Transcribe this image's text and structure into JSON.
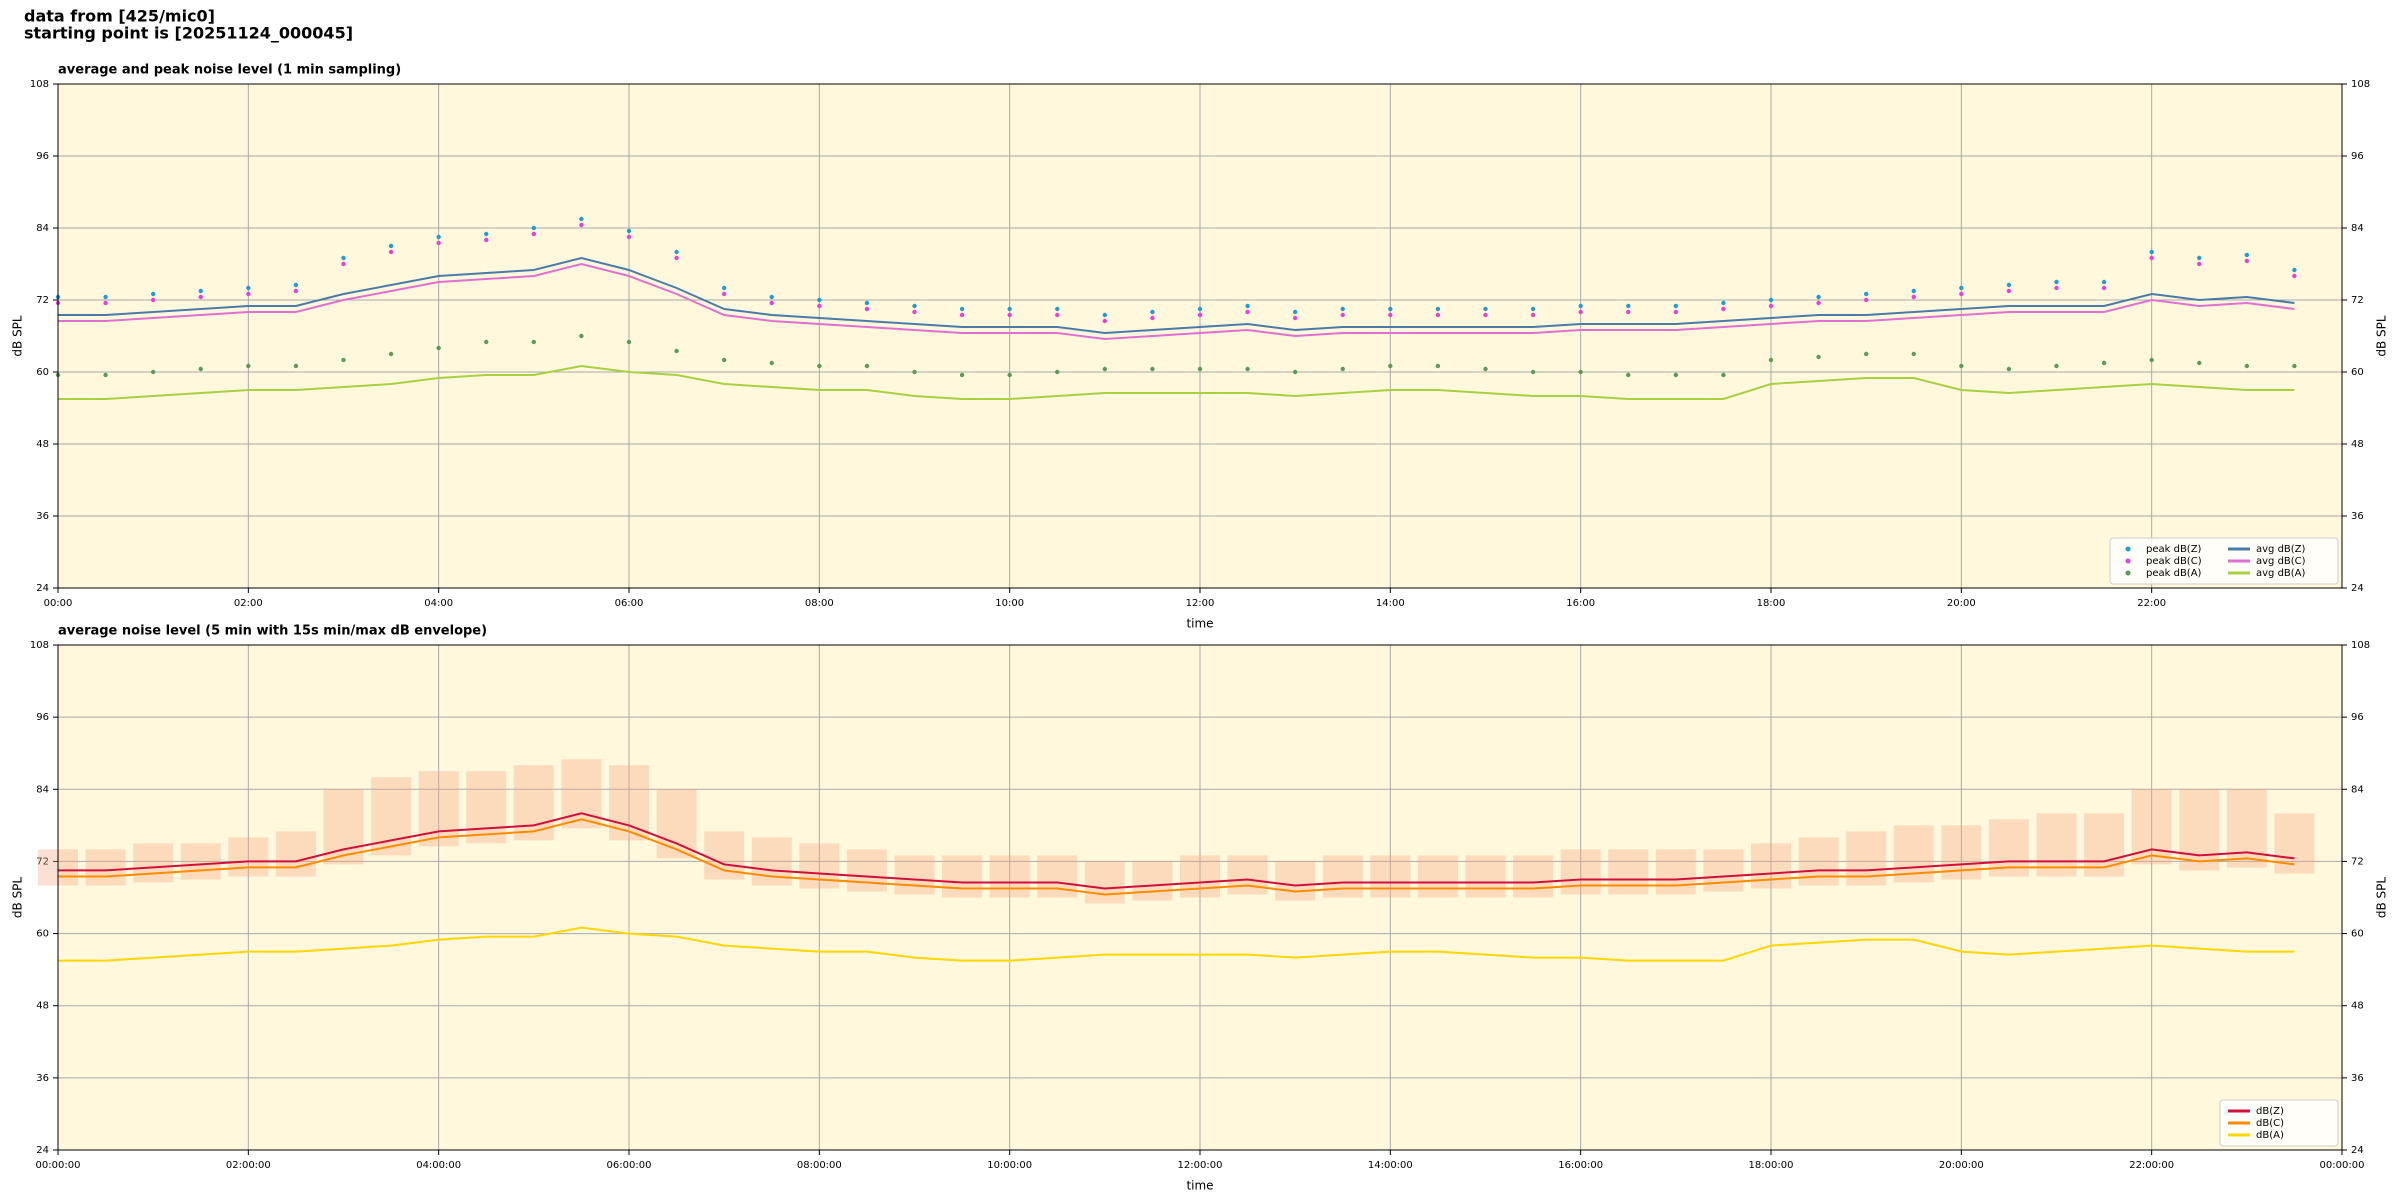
{
  "header": {
    "line1": "data from [425/mic0]",
    "line2": "starting point is [20251124_000045]"
  },
  "chart_data": [
    {
      "type": "line",
      "title": "average and peak noise level (1 min sampling)",
      "xlabel": "time",
      "ylabel": "dB SPL",
      "xlim": [
        0,
        24
      ],
      "ylim": [
        24,
        108
      ],
      "yticks": [
        24,
        36,
        48,
        60,
        72,
        84,
        96,
        108
      ],
      "xticks": [
        {
          "value": 0,
          "label": "00:00"
        },
        {
          "value": 2,
          "label": "02:00"
        },
        {
          "value": 4,
          "label": "04:00"
        },
        {
          "value": 6,
          "label": "06:00"
        },
        {
          "value": 8,
          "label": "08:00"
        },
        {
          "value": 10,
          "label": "10:00"
        },
        {
          "value": 12,
          "label": "12:00"
        },
        {
          "value": 14,
          "label": "14:00"
        },
        {
          "value": 16,
          "label": "16:00"
        },
        {
          "value": 18,
          "label": "18:00"
        },
        {
          "value": 20,
          "label": "20:00"
        },
        {
          "value": 22,
          "label": "22:00"
        }
      ],
      "grid": true,
      "background": "#fff8dc",
      "legend": "lower right",
      "legend_columns": 2,
      "x": [
        0,
        0.5,
        1,
        1.5,
        2,
        2.5,
        3,
        3.5,
        4,
        4.5,
        5,
        5.5,
        6,
        6.5,
        7,
        7.5,
        8,
        8.5,
        9,
        9.5,
        10,
        10.5,
        11,
        11.5,
        12,
        12.5,
        13,
        13.5,
        14,
        14.5,
        15,
        15.5,
        16,
        16.5,
        17,
        17.5,
        18,
        18.5,
        19,
        19.5,
        20,
        20.5,
        21,
        21.5,
        22,
        22.5,
        23,
        23.5
      ],
      "series": [
        {
          "name": "peak dB(Z)",
          "color": "#1f9bd7",
          "marker": "dot",
          "values": [
            72.5,
            72.5,
            73,
            73.5,
            74,
            74.5,
            79,
            81,
            82.5,
            83,
            84,
            85.5,
            83.5,
            80,
            74,
            72.5,
            72,
            71.5,
            71,
            70.5,
            70.5,
            70.5,
            69.5,
            70,
            70.5,
            71,
            70,
            70.5,
            70.5,
            70.5,
            70.5,
            70.5,
            71,
            71,
            71,
            71.5,
            72,
            72.5,
            73,
            73.5,
            74,
            74.5,
            75,
            75,
            80,
            79,
            79.5,
            77
          ]
        },
        {
          "name": "peak dB(C)",
          "color": "#e83ee0",
          "marker": "dot",
          "values": [
            71.5,
            71.5,
            72,
            72.5,
            73,
            73.5,
            78,
            80,
            81.5,
            82,
            83,
            84.5,
            82.5,
            79,
            73,
            71.5,
            71,
            70.5,
            70,
            69.5,
            69.5,
            69.5,
            68.5,
            69,
            69.5,
            70,
            69,
            69.5,
            69.5,
            69.5,
            69.5,
            69.5,
            70,
            70,
            70,
            70.5,
            71,
            71.5,
            72,
            72.5,
            73,
            73.5,
            74,
            74,
            79,
            78,
            78.5,
            76
          ]
        },
        {
          "name": "peak dB(A)",
          "color": "#5a9a5a",
          "marker": "dot",
          "values": [
            59.5,
            59.5,
            60,
            60.5,
            61,
            61,
            62,
            63,
            64,
            65,
            65,
            66,
            65,
            63.5,
            62,
            61.5,
            61,
            61,
            60,
            59.5,
            59.5,
            60,
            60.5,
            60.5,
            60.5,
            60.5,
            60,
            60.5,
            61,
            61,
            60.5,
            60,
            60,
            59.5,
            59.5,
            59.5,
            62,
            62.5,
            63,
            63,
            61,
            60.5,
            61,
            61.5,
            62,
            61.5,
            61,
            61
          ]
        },
        {
          "name": "avg dB(Z)",
          "color": "#4a7ba8",
          "marker": "line",
          "values": [
            69.5,
            69.5,
            70,
            70.5,
            71,
            71,
            73,
            74.5,
            76,
            76.5,
            77,
            79,
            77,
            74,
            70.5,
            69.5,
            69,
            68.5,
            68,
            67.5,
            67.5,
            67.5,
            66.5,
            67,
            67.5,
            68,
            67,
            67.5,
            67.5,
            67.5,
            67.5,
            67.5,
            68,
            68,
            68,
            68.5,
            69,
            69.5,
            69.5,
            70,
            70.5,
            71,
            71,
            71,
            73,
            72,
            72.5,
            71.5
          ]
        },
        {
          "name": "avg dB(C)",
          "color": "#e070d0",
          "marker": "line",
          "values": [
            68.5,
            68.5,
            69,
            69.5,
            70,
            70,
            72,
            73.5,
            75,
            75.5,
            76,
            78,
            76,
            73,
            69.5,
            68.5,
            68,
            67.5,
            67,
            66.5,
            66.5,
            66.5,
            65.5,
            66,
            66.5,
            67,
            66,
            66.5,
            66.5,
            66.5,
            66.5,
            66.5,
            67,
            67,
            67,
            67.5,
            68,
            68.5,
            68.5,
            69,
            69.5,
            70,
            70,
            70,
            72,
            71,
            71.5,
            70.5
          ]
        },
        {
          "name": "avg dB(A)",
          "color": "#a8d040",
          "marker": "line",
          "values": [
            55.5,
            55.5,
            56,
            56.5,
            57,
            57,
            57.5,
            58,
            59,
            59.5,
            59.5,
            61,
            60,
            59.5,
            58,
            57.5,
            57,
            57,
            56,
            55.5,
            55.5,
            56,
            56.5,
            56.5,
            56.5,
            56.5,
            56,
            56.5,
            57,
            57,
            56.5,
            56,
            56,
            55.5,
            55.5,
            55.5,
            58,
            58.5,
            59,
            59,
            57,
            56.5,
            57,
            57.5,
            58,
            57.5,
            57,
            57
          ]
        }
      ]
    },
    {
      "type": "line",
      "title": "average noise level (5 min with 15s min/max dB envelope)",
      "xlabel": "time",
      "ylabel": "dB SPL",
      "xlim": [
        0,
        24
      ],
      "ylim": [
        24,
        108
      ],
      "yticks": [
        24,
        36,
        48,
        60,
        72,
        84,
        96,
        108
      ],
      "xticks": [
        {
          "value": 0,
          "label": "00:00:00"
        },
        {
          "value": 2,
          "label": "02:00:00"
        },
        {
          "value": 4,
          "label": "04:00:00"
        },
        {
          "value": 6,
          "label": "06:00:00"
        },
        {
          "value": 8,
          "label": "08:00:00"
        },
        {
          "value": 10,
          "label": "10:00:00"
        },
        {
          "value": 12,
          "label": "12:00:00"
        },
        {
          "value": 14,
          "label": "14:00:00"
        },
        {
          "value": 16,
          "label": "16:00:00"
        },
        {
          "value": 18,
          "label": "18:00:00"
        },
        {
          "value": 20,
          "label": "20:00:00"
        },
        {
          "value": 22,
          "label": "22:00:00"
        },
        {
          "value": 24,
          "label": "00:00:00"
        }
      ],
      "grid": true,
      "background": "#fff8dc",
      "legend": "lower right",
      "legend_columns": 1,
      "x": [
        0,
        0.5,
        1,
        1.5,
        2,
        2.5,
        3,
        3.5,
        4,
        4.5,
        5,
        5.5,
        6,
        6.5,
        7,
        7.5,
        8,
        8.5,
        9,
        9.5,
        10,
        10.5,
        11,
        11.5,
        12,
        12.5,
        13,
        13.5,
        14,
        14.5,
        15,
        15.5,
        16,
        16.5,
        17,
        17.5,
        18,
        18.5,
        19,
        19.5,
        20,
        20.5,
        21,
        21.5,
        22,
        22.5,
        23,
        23.5
      ],
      "envelope": {
        "color": "#f4a582",
        "low": [
          68,
          68,
          68.5,
          69,
          69.5,
          69.5,
          71.5,
          73,
          74.5,
          75,
          75.5,
          77.5,
          75.5,
          72.5,
          69,
          68,
          67.5,
          67,
          66.5,
          66,
          66,
          66,
          65,
          65.5,
          66,
          66.5,
          65.5,
          66,
          66,
          66,
          66,
          66,
          66.5,
          66.5,
          66.5,
          67,
          67.5,
          68,
          68,
          68.5,
          69,
          69.5,
          69.5,
          69.5,
          71.5,
          70.5,
          71,
          70
        ],
        "high": [
          74,
          74,
          75,
          75,
          76,
          77,
          84,
          86,
          87,
          87,
          88,
          89,
          88,
          84,
          77,
          76,
          75,
          74,
          73,
          73,
          73,
          73,
          72,
          72,
          73,
          73,
          72,
          73,
          73,
          73,
          73,
          73,
          74,
          74,
          74,
          74,
          75,
          76,
          77,
          78,
          78,
          79,
          80,
          80,
          84,
          84,
          84,
          80
        ]
      },
      "series": [
        {
          "name": "dB(Z)",
          "color": "#d0103a",
          "marker": "line",
          "values": [
            70.5,
            70.5,
            71,
            71.5,
            72,
            72,
            74,
            75.5,
            77,
            77.5,
            78,
            80,
            78,
            75,
            71.5,
            70.5,
            70,
            69.5,
            69,
            68.5,
            68.5,
            68.5,
            67.5,
            68,
            68.5,
            69,
            68,
            68.5,
            68.5,
            68.5,
            68.5,
            68.5,
            69,
            69,
            69,
            69.5,
            70,
            70.5,
            70.5,
            71,
            71.5,
            72,
            72,
            72,
            74,
            73,
            73.5,
            72.5
          ]
        },
        {
          "name": "dB(C)",
          "color": "#ff8c00",
          "marker": "line",
          "values": [
            69.5,
            69.5,
            70,
            70.5,
            71,
            71,
            73,
            74.5,
            76,
            76.5,
            77,
            79,
            77,
            74,
            70.5,
            69.5,
            69,
            68.5,
            68,
            67.5,
            67.5,
            67.5,
            66.5,
            67,
            67.5,
            68,
            67,
            67.5,
            67.5,
            67.5,
            67.5,
            67.5,
            68,
            68,
            68,
            68.5,
            69,
            69.5,
            69.5,
            70,
            70.5,
            71,
            71,
            71,
            73,
            72,
            72.5,
            71.5
          ]
        },
        {
          "name": "dB(A)",
          "color": "#ffd700",
          "marker": "line",
          "values": [
            55.5,
            55.5,
            56,
            56.5,
            57,
            57,
            57.5,
            58,
            59,
            59.5,
            59.5,
            61,
            60,
            59.5,
            58,
            57.5,
            57,
            57,
            56,
            55.5,
            55.5,
            56,
            56.5,
            56.5,
            56.5,
            56.5,
            56,
            56.5,
            57,
            57,
            56.5,
            56,
            56,
            55.5,
            55.5,
            55.5,
            58,
            58.5,
            59,
            59,
            57,
            56.5,
            57,
            57.5,
            58,
            57.5,
            57,
            57
          ]
        }
      ]
    }
  ]
}
